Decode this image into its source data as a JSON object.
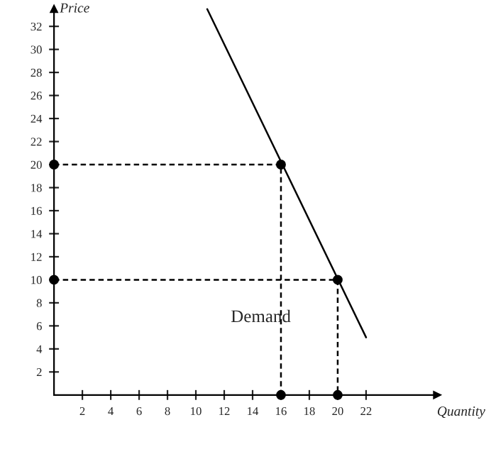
{
  "chart_data": {
    "type": "line",
    "xlabel": "Quantity",
    "ylabel": "Price",
    "xlim": [
      0,
      27
    ],
    "ylim": [
      0,
      33.5
    ],
    "xticks": [
      2,
      4,
      6,
      8,
      10,
      12,
      14,
      16,
      18,
      20,
      22
    ],
    "yticks": [
      2,
      4,
      6,
      8,
      10,
      12,
      14,
      16,
      18,
      20,
      22,
      24,
      26,
      28,
      30,
      32
    ],
    "grid": false,
    "legend": false,
    "series": [
      {
        "color": "#000000",
        "x": [
          10.8,
          22
        ],
        "values": [
          33.5,
          5
        ],
        "line_style": "solid",
        "marker": "none"
      },
      {
        "color": "#000000",
        "x": [
          0,
          16,
          16
        ],
        "values": [
          20,
          20,
          0
        ],
        "line_style": "dashed",
        "marker": "circle"
      },
      {
        "color": "#000000",
        "x": [
          0,
          20,
          20
        ],
        "values": [
          10,
          10,
          0
        ],
        "line_style": "dashed",
        "marker": "circle"
      }
    ],
    "annotations": [
      "Demand"
    ]
  }
}
